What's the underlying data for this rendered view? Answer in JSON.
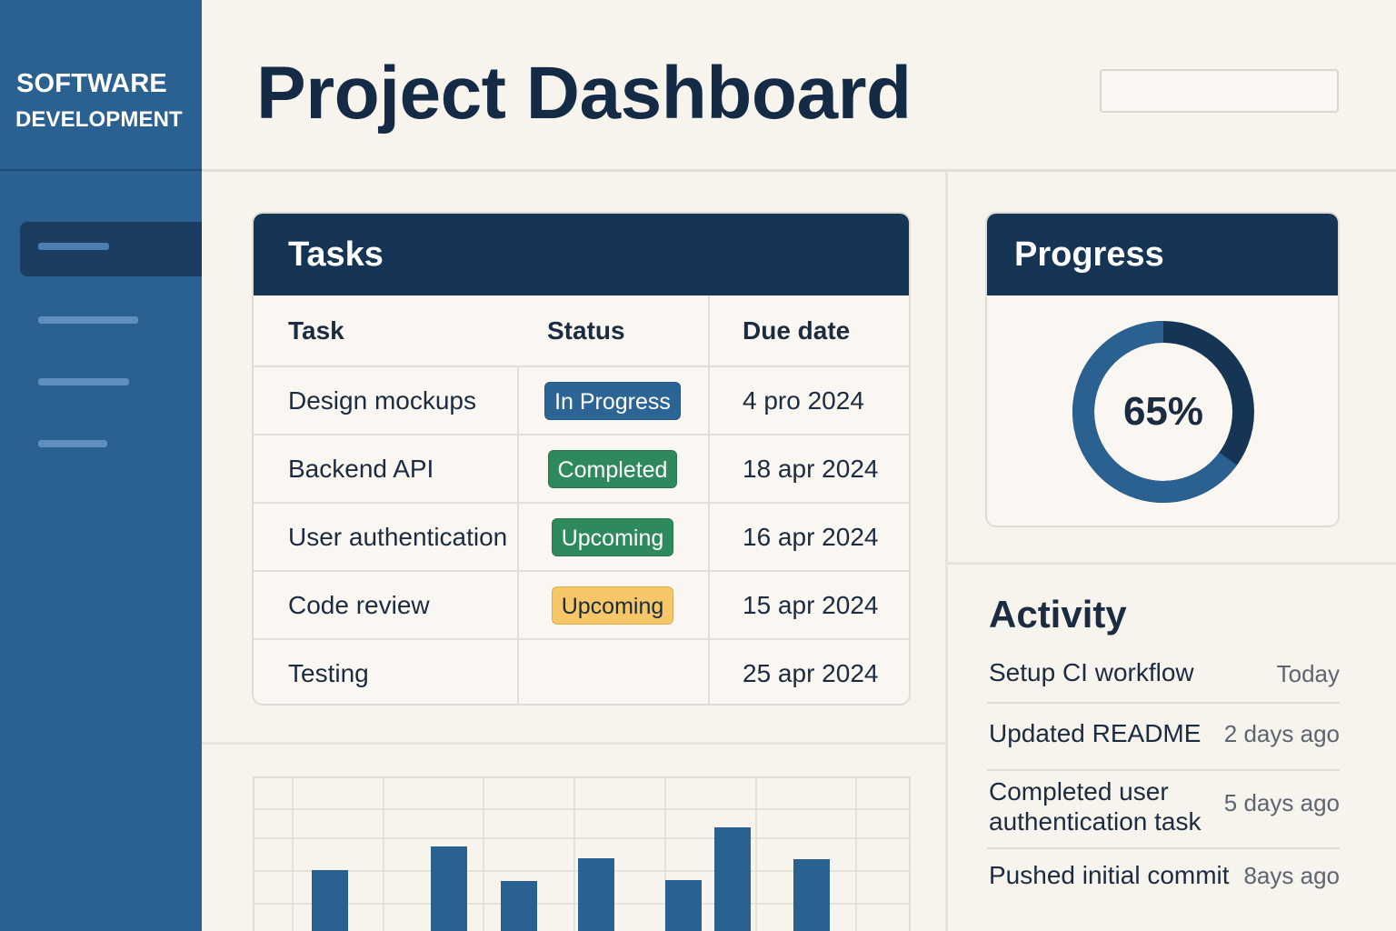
{
  "sidebar": {
    "brand_line1": "SOFTWARE",
    "brand_line2": "DEVELOPMENT"
  },
  "header": {
    "title": "Project Dashboard",
    "search_value": ""
  },
  "tasks": {
    "title": "Tasks",
    "columns": [
      "Task",
      "Status",
      "Due date"
    ],
    "rows": [
      {
        "task": "Design mockups",
        "status": "In Progress",
        "status_color": "#2d6496",
        "status_text_color": "#ffffff",
        "due": "4 pro  2024"
      },
      {
        "task": "Backend API",
        "status": "Completed",
        "status_color": "#2e8a5c",
        "status_text_color": "#ffffff",
        "due": "18 apr 2024"
      },
      {
        "task": "User authentication",
        "status": "Upcoming",
        "status_color": "#2e8a5c",
        "status_text_color": "#ffffff",
        "due": "16 apr 2024"
      },
      {
        "task": "Code review",
        "status": "Upcoming",
        "status_color": "#f6c766",
        "status_text_color": "#1b2b40",
        "due": "15 apr 2024"
      },
      {
        "task": "Testing",
        "status": "",
        "status_color": "",
        "status_text_color": "",
        "due": "25 apr 2024"
      }
    ]
  },
  "progress": {
    "title": "Progress",
    "value_label": "65%",
    "fraction": 0.65,
    "colors": {
      "filled": "#2b6191",
      "remaining": "#163454"
    }
  },
  "activity": {
    "title": "Activity",
    "items": [
      {
        "text": "Setup CI workflow",
        "time": "Today"
      },
      {
        "text": "Updated README",
        "time": "2 days ago"
      },
      {
        "text": "Completed user authentication task",
        "time": "5 days ago"
      },
      {
        "text": "Pushed initial commit",
        "time": "8ays ago"
      }
    ]
  },
  "chart_data": {
    "type": "bar",
    "bar_color": "#2b6191",
    "values": [
      67,
      93,
      55,
      80,
      56,
      114,
      79
    ],
    "ylim": [
      0,
      170
    ],
    "grid": true
  }
}
